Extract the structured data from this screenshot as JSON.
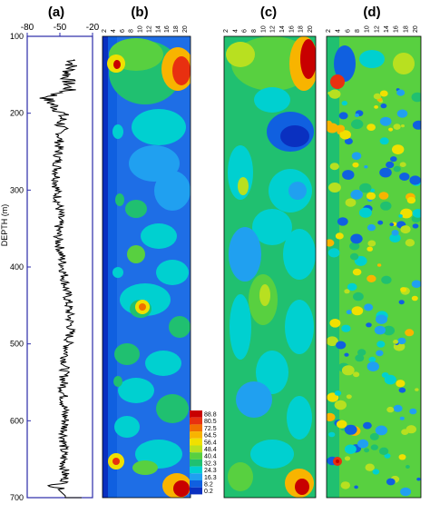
{
  "chart_data": [
    {
      "panel": "(a)",
      "type": "line",
      "ylabel": "DEPTH (m)",
      "xlabel": "",
      "xlim": [
        -80,
        -20
      ],
      "ylim": [
        100,
        700
      ],
      "xticks": [
        "-80",
        "-50",
        "-20"
      ],
      "yticks": [
        "100",
        "200",
        "300",
        "400",
        "500",
        "600",
        "700"
      ],
      "profile": [
        {
          "depth": 130,
          "x": -37
        },
        {
          "depth": 150,
          "x": -43
        },
        {
          "depth": 170,
          "x": -42
        },
        {
          "depth": 180,
          "x": -63
        },
        {
          "depth": 200,
          "x": -48
        },
        {
          "depth": 230,
          "x": -50
        },
        {
          "depth": 260,
          "x": -52
        },
        {
          "depth": 300,
          "x": -53
        },
        {
          "depth": 330,
          "x": -50
        },
        {
          "depth": 360,
          "x": -52
        },
        {
          "depth": 390,
          "x": -48
        },
        {
          "depth": 420,
          "x": -45
        },
        {
          "depth": 450,
          "x": -42
        },
        {
          "depth": 480,
          "x": -40
        },
        {
          "depth": 520,
          "x": -45
        },
        {
          "depth": 560,
          "x": -47
        },
        {
          "depth": 600,
          "x": -45
        },
        {
          "depth": 640,
          "x": -47
        },
        {
          "depth": 680,
          "x": -45
        },
        {
          "depth": 685,
          "x": -58
        },
        {
          "depth": 690,
          "x": -45
        }
      ]
    },
    {
      "panel": "(b)",
      "type": "heatmap",
      "xticks": [
        "2",
        "4",
        "6",
        "8",
        "10",
        "12",
        "14",
        "16",
        "18",
        "20"
      ]
    },
    {
      "panel": "(c)",
      "type": "heatmap",
      "xticks": [
        "2",
        "4",
        "6",
        "8",
        "10",
        "12",
        "14",
        "16",
        "18",
        "20"
      ]
    },
    {
      "panel": "(d)",
      "type": "heatmap",
      "xticks": [
        "2",
        "4",
        "6",
        "8",
        "10",
        "12",
        "14",
        "16",
        "18",
        "20"
      ]
    }
  ],
  "colorbar": {
    "values": [
      "88.8",
      "80.5",
      "72.5",
      "64.5",
      "56.4",
      "48.4",
      "40.4",
      "32.3",
      "24.3",
      "16.3",
      "8.2",
      "0.2"
    ],
    "colors": [
      "#c80000",
      "#e83010",
      "#f07000",
      "#f8b400",
      "#f0e000",
      "#b8e020",
      "#58d040",
      "#20c070",
      "#00d0d0",
      "#20a0f0",
      "#1060e0",
      "#0a30c0"
    ]
  }
}
